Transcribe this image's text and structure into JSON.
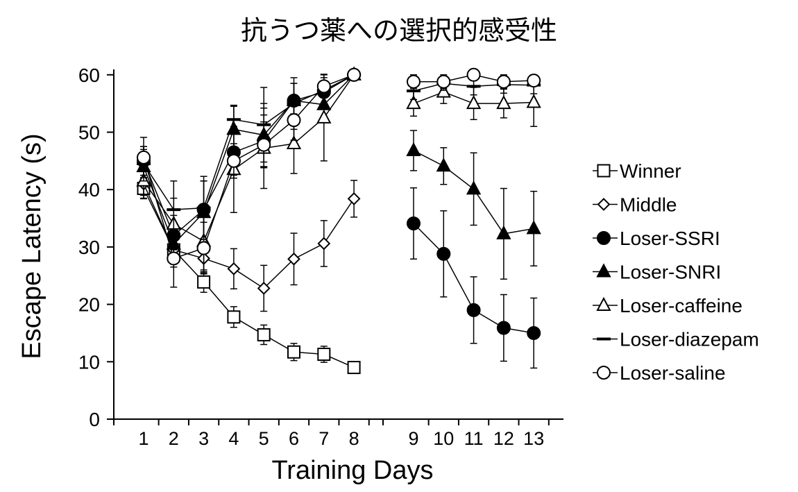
{
  "chart_data": {
    "type": "line",
    "title": "抗うつ薬への選択的感受性",
    "xlabel": "Training Days",
    "ylabel": "Escape Latency (s)",
    "ylim": [
      0,
      60
    ],
    "yticks": [
      "0",
      "10",
      "20",
      "30",
      "40",
      "50",
      "60"
    ],
    "x": [
      1,
      2,
      3,
      4,
      5,
      6,
      7,
      8,
      9,
      10,
      11,
      12,
      13
    ],
    "xticks": [
      "1",
      "2",
      "3",
      "4",
      "5",
      "6",
      "7",
      "8",
      "9",
      "10",
      "11",
      "12",
      "13"
    ],
    "grid": false,
    "legend_position": "right",
    "series": [
      {
        "name": "Winner",
        "marker": "square-open",
        "x": [
          1,
          2,
          3,
          4,
          5,
          6,
          7,
          8
        ],
        "y": [
          40.2,
          29.5,
          23.9,
          17.8,
          14.7,
          11.7,
          11.3,
          9.0
        ],
        "err": [
          1.8,
          2.0,
          1.8,
          1.8,
          1.7,
          1.5,
          1.4,
          0
        ]
      },
      {
        "name": "Middle",
        "marker": "diamond-open",
        "x": [
          1,
          2,
          3,
          4,
          5,
          6,
          7,
          8
        ],
        "y": [
          41.0,
          29.5,
          28.0,
          26.2,
          22.8,
          27.9,
          30.6,
          38.4
        ],
        "err": [
          2.5,
          3.0,
          2.5,
          3.5,
          4.0,
          4.5,
          4.0,
          3.2
        ]
      },
      {
        "name": "Loser-SSRI",
        "marker": "circle-filled",
        "x": [
          1,
          2,
          3,
          4,
          5,
          6,
          7,
          8,
          9,
          10,
          11,
          12,
          13
        ],
        "y": [
          45.0,
          32.0,
          36.5,
          46.5,
          48.5,
          55.5,
          57.0,
          60.0,
          34.1,
          28.8,
          19.0,
          15.9,
          15.0
        ],
        "err": [
          2.5,
          3.5,
          5.0,
          4.0,
          4.5,
          3.0,
          2.5,
          0,
          6.2,
          7.5,
          5.8,
          5.8,
          6.1
        ]
      },
      {
        "name": "Loser-SNRI",
        "marker": "triangle-filled",
        "x": [
          1,
          2,
          3,
          4,
          5,
          6,
          7,
          8,
          9,
          10,
          11,
          12,
          13
        ],
        "y": [
          44.0,
          30.5,
          36.0,
          50.5,
          49.5,
          55.5,
          54.8,
          60.0,
          46.8,
          44.1,
          40.1,
          32.3,
          33.2
        ],
        "err": [
          3.0,
          3.5,
          5.5,
          4.0,
          5.5,
          3.0,
          3.0,
          0,
          3.5,
          3.2,
          6.3,
          7.9,
          6.5
        ]
      },
      {
        "name": "Loser-caffeine",
        "marker": "triangle-open",
        "x": [
          1,
          2,
          3,
          4,
          5,
          6,
          7,
          8,
          9,
          10,
          11,
          12,
          13
        ],
        "y": [
          41.5,
          34.0,
          31.0,
          43.5,
          47.2,
          48.0,
          52.5,
          60.0,
          55.0,
          57.0,
          55.0,
          55.0,
          55.2
        ],
        "err": [
          2.5,
          4.5,
          5.0,
          7.5,
          7.0,
          5.2,
          7.5,
          0,
          2.2,
          2.0,
          2.8,
          2.5,
          4.2
        ]
      },
      {
        "name": "Loser-diazepam",
        "marker": "dash",
        "x": [
          1,
          2,
          3,
          4,
          5,
          6,
          7,
          8,
          9,
          10,
          11,
          12,
          13
        ],
        "y": [
          44.5,
          36.5,
          36.8,
          52.2,
          51.3,
          55.0,
          57.3,
          60.0,
          57.2,
          58.5,
          58.0,
          58.3,
          58.2
        ],
        "err": [
          3.0,
          5.0,
          5.5,
          2.5,
          6.5,
          4.5,
          2.8,
          0,
          1.5,
          1.2,
          1.5,
          1.5,
          1.5
        ]
      },
      {
        "name": "Loser-saline",
        "marker": "circle-open",
        "x": [
          1,
          2,
          3,
          4,
          5,
          6,
          7,
          8,
          9,
          10,
          11,
          12,
          13
        ],
        "y": [
          45.6,
          28.0,
          29.8,
          45.0,
          47.8,
          52.1,
          58.0,
          60.0,
          58.8,
          58.8,
          60.0,
          58.8,
          59.0
        ],
        "err": [
          3.5,
          5.0,
          4.5,
          3.0,
          4.0,
          3.5,
          2.0,
          0,
          1.2,
          1.2,
          1.0,
          1.2,
          1.0
        ]
      }
    ]
  }
}
